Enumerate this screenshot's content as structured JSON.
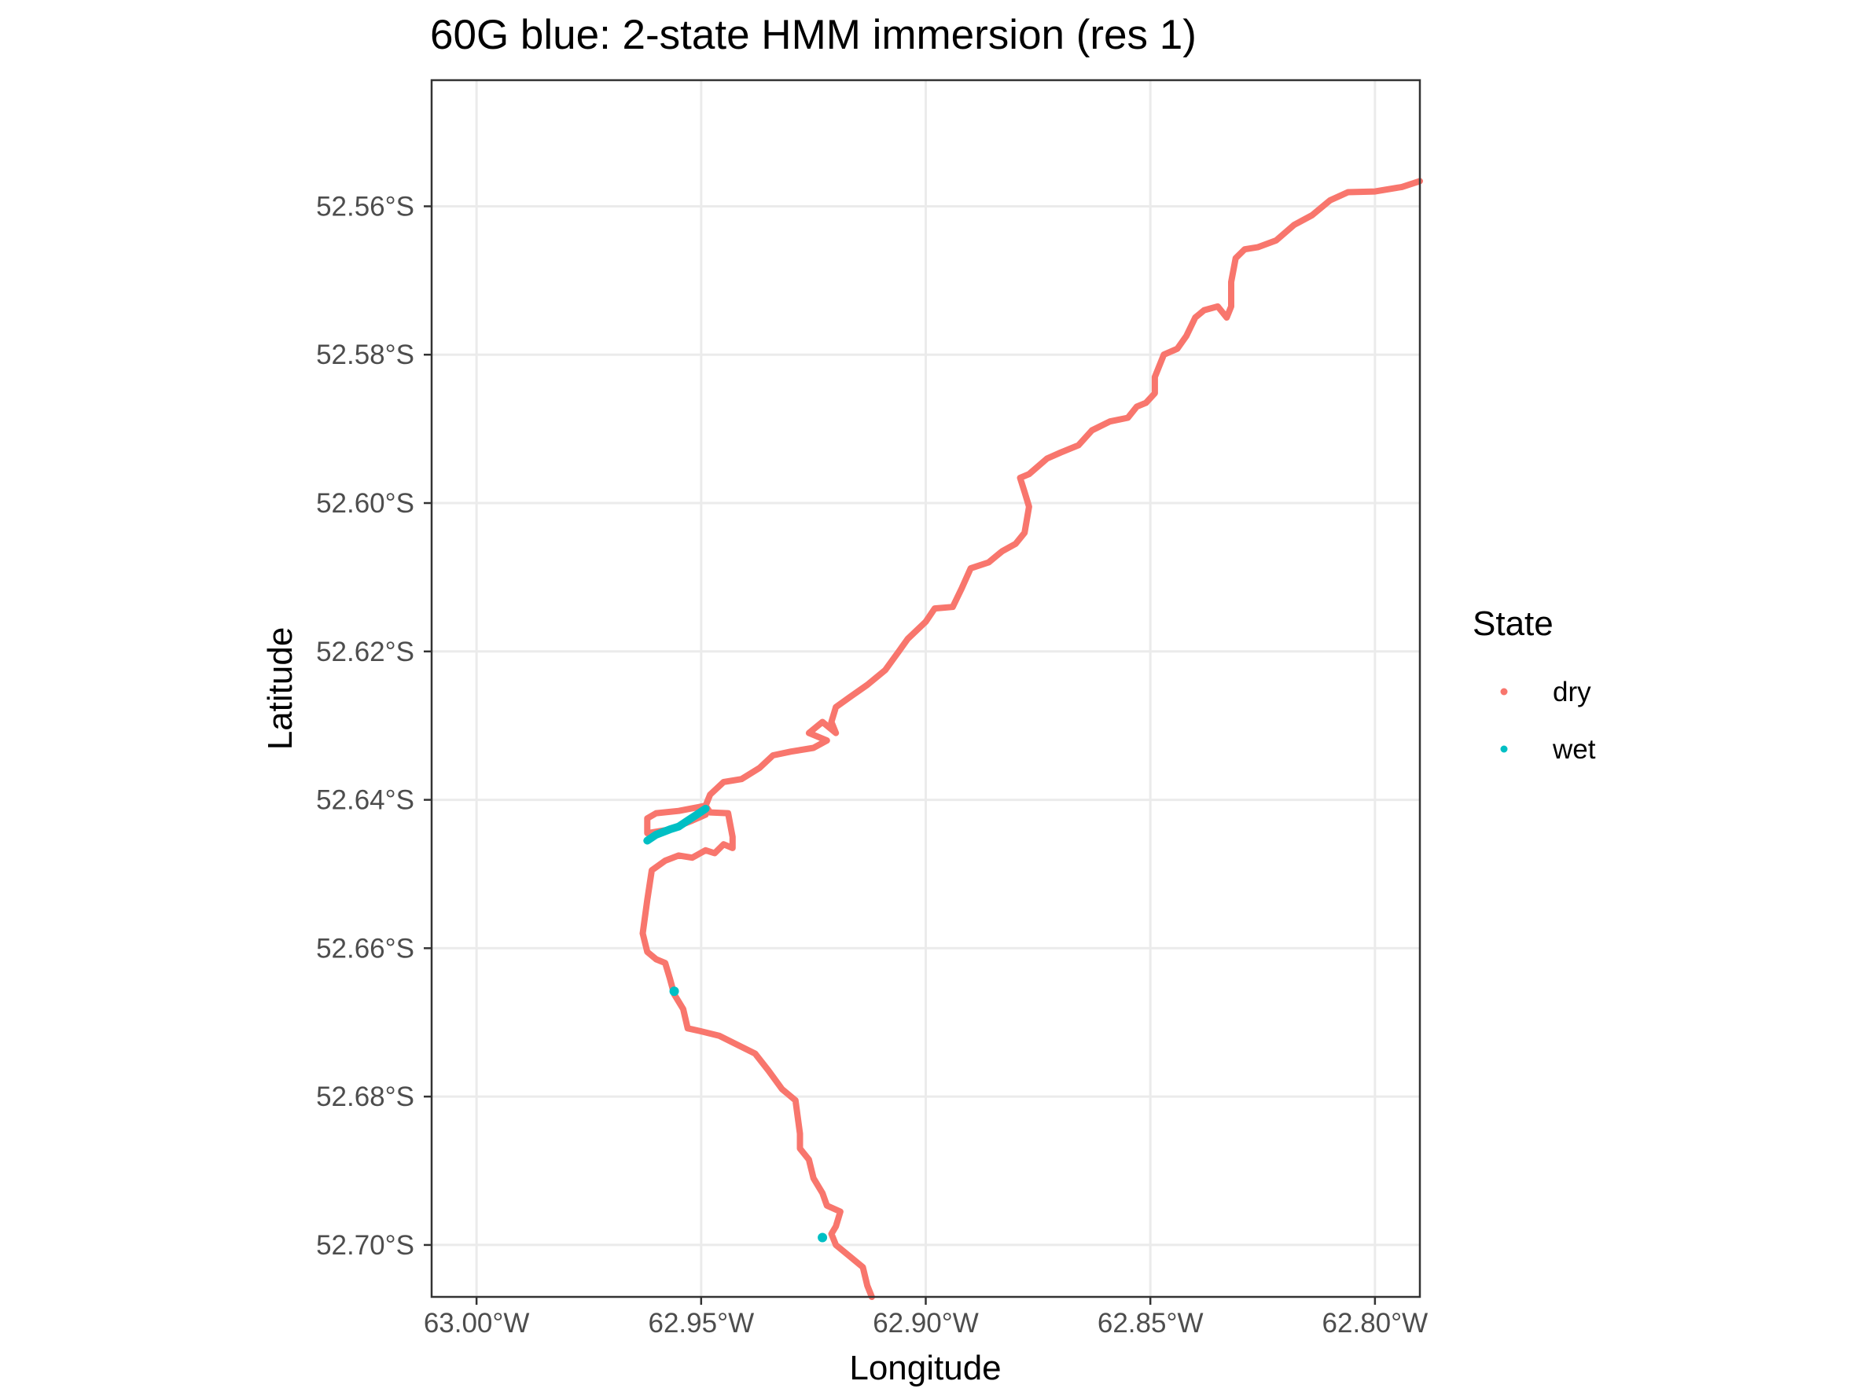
{
  "chart_data": {
    "type": "scatter",
    "title": "60G blue: 2-state HMM immersion (res 1)",
    "xlabel": "Longitude",
    "ylabel": "Latitude",
    "xlim": [
      -63.01,
      -62.79
    ],
    "ylim": [
      -52.707,
      -52.543
    ],
    "x_ticks": [
      {
        "value": -63.0,
        "label": "63.00°W"
      },
      {
        "value": -62.95,
        "label": "62.95°W"
      },
      {
        "value": -62.9,
        "label": "62.90°W"
      },
      {
        "value": -62.85,
        "label": "62.85°W"
      },
      {
        "value": -62.8,
        "label": "62.80°W"
      }
    ],
    "y_ticks": [
      {
        "value": -52.56,
        "label": "52.56°S"
      },
      {
        "value": -52.58,
        "label": "52.58°S"
      },
      {
        "value": -52.6,
        "label": "52.60°S"
      },
      {
        "value": -52.62,
        "label": "52.62°S"
      },
      {
        "value": -52.64,
        "label": "52.64°S"
      },
      {
        "value": -52.66,
        "label": "52.66°S"
      },
      {
        "value": -52.68,
        "label": "52.68°S"
      },
      {
        "value": -52.7,
        "label": "52.70°S"
      }
    ],
    "grid": true,
    "legend": {
      "title": "State",
      "position": "right"
    },
    "series": [
      {
        "name": "dry",
        "color": "#F8766D",
        "path": [
          [
            -62.79,
            -52.5566
          ],
          [
            -62.794,
            -52.5574
          ],
          [
            -62.8,
            -52.558
          ],
          [
            -62.806,
            -52.5581
          ],
          [
            -62.81,
            -52.5592
          ],
          [
            -62.814,
            -52.5612
          ],
          [
            -62.818,
            -52.5625
          ],
          [
            -62.822,
            -52.5646
          ],
          [
            -62.826,
            -52.5655
          ],
          [
            -62.829,
            -52.5658
          ],
          [
            -62.831,
            -52.567
          ],
          [
            -62.832,
            -52.5702
          ],
          [
            -62.832,
            -52.5735
          ],
          [
            -62.833,
            -52.575
          ],
          [
            -62.835,
            -52.5735
          ],
          [
            -62.838,
            -52.574
          ],
          [
            -62.84,
            -52.575
          ],
          [
            -62.842,
            -52.5775
          ],
          [
            -62.844,
            -52.5792
          ],
          [
            -62.847,
            -52.58
          ],
          [
            -62.849,
            -52.583
          ],
          [
            -62.849,
            -52.5852
          ],
          [
            -62.851,
            -52.5865
          ],
          [
            -62.853,
            -52.587
          ],
          [
            -62.855,
            -52.5885
          ],
          [
            -62.859,
            -52.589
          ],
          [
            -62.863,
            -52.5902
          ],
          [
            -62.866,
            -52.5922
          ],
          [
            -62.87,
            -52.5932
          ],
          [
            -62.873,
            -52.594
          ],
          [
            -62.877,
            -52.5961
          ],
          [
            -62.879,
            -52.5966
          ],
          [
            -62.878,
            -52.5985
          ],
          [
            -62.877,
            -52.6005
          ],
          [
            -62.878,
            -52.604
          ],
          [
            -62.88,
            -52.6055
          ],
          [
            -62.883,
            -52.6065
          ],
          [
            -62.886,
            -52.608
          ],
          [
            -62.89,
            -52.6088
          ],
          [
            -62.892,
            -52.6115
          ],
          [
            -62.894,
            -52.614
          ],
          [
            -62.898,
            -52.6142
          ],
          [
            -62.9,
            -52.616
          ],
          [
            -62.904,
            -52.6183
          ],
          [
            -62.906,
            -52.62
          ],
          [
            -62.909,
            -52.6225
          ],
          [
            -62.913,
            -52.6245
          ],
          [
            -62.917,
            -52.6262
          ],
          [
            -62.92,
            -52.6275
          ],
          [
            -62.921,
            -52.6295
          ],
          [
            -62.92,
            -52.631
          ],
          [
            -62.923,
            -52.6295
          ],
          [
            -62.926,
            -52.631
          ],
          [
            -62.922,
            -52.632
          ],
          [
            -62.925,
            -52.633
          ],
          [
            -62.93,
            -52.6335
          ],
          [
            -62.934,
            -52.634
          ],
          [
            -62.937,
            -52.6357
          ],
          [
            -62.941,
            -52.6372
          ],
          [
            -62.945,
            -52.6376
          ],
          [
            -62.948,
            -52.6393
          ],
          [
            -62.949,
            -52.6408
          ],
          [
            -62.948,
            -52.6417
          ],
          [
            -62.944,
            -52.6418
          ],
          [
            -62.943,
            -52.645
          ],
          [
            -62.943,
            -52.6465
          ],
          [
            -62.945,
            -52.646
          ],
          [
            -62.947,
            -52.6472
          ],
          [
            -62.949,
            -52.6468
          ],
          [
            -62.952,
            -52.6478
          ],
          [
            -62.955,
            -52.6475
          ],
          [
            -62.958,
            -52.6482
          ],
          [
            -62.961,
            -52.6495
          ],
          [
            -62.962,
            -52.6535
          ],
          [
            -62.963,
            -52.658
          ],
          [
            -62.962,
            -52.6605
          ],
          [
            -62.96,
            -52.6615
          ],
          [
            -62.958,
            -52.662
          ],
          [
            -62.957,
            -52.664
          ],
          [
            -62.956,
            -52.6662
          ],
          [
            -62.954,
            -52.6682
          ],
          [
            -62.953,
            -52.6708
          ],
          [
            -62.95,
            -52.6712
          ],
          [
            -62.946,
            -52.6718
          ],
          [
            -62.942,
            -52.673
          ],
          [
            -62.938,
            -52.6742
          ],
          [
            -62.935,
            -52.6765
          ],
          [
            -62.932,
            -52.679
          ],
          [
            -62.929,
            -52.6805
          ],
          [
            -62.928,
            -52.685
          ],
          [
            -62.928,
            -52.687
          ],
          [
            -62.926,
            -52.6885
          ],
          [
            -62.925,
            -52.691
          ],
          [
            -62.923,
            -52.693
          ],
          [
            -62.922,
            -52.6947
          ],
          [
            -62.919,
            -52.6955
          ],
          [
            -62.92,
            -52.6975
          ],
          [
            -62.921,
            -52.6985
          ],
          [
            -62.92,
            -52.7
          ],
          [
            -62.917,
            -52.7015
          ],
          [
            -62.914,
            -52.703
          ],
          [
            -62.913,
            -52.7055
          ],
          [
            -62.912,
            -52.707
          ]
        ],
        "loop": [
          [
            -62.949,
            -52.6408
          ],
          [
            -62.955,
            -52.6415
          ],
          [
            -62.96,
            -52.6418
          ],
          [
            -62.962,
            -52.6425
          ],
          [
            -62.962,
            -52.6445
          ],
          [
            -62.957,
            -52.644
          ],
          [
            -62.952,
            -52.6428
          ],
          [
            -62.949,
            -52.642
          ]
        ]
      },
      {
        "name": "wet",
        "color": "#00BFC4",
        "path": [
          [
            -62.962,
            -52.6455
          ],
          [
            -62.96,
            -52.6447
          ],
          [
            -62.957,
            -52.644
          ],
          [
            -62.955,
            -52.6436
          ],
          [
            -62.953,
            -52.6428
          ],
          [
            -62.951,
            -52.642
          ],
          [
            -62.949,
            -52.6412
          ]
        ],
        "points": [
          [
            -62.956,
            -52.6658
          ],
          [
            -62.923,
            -52.699
          ]
        ]
      }
    ]
  }
}
